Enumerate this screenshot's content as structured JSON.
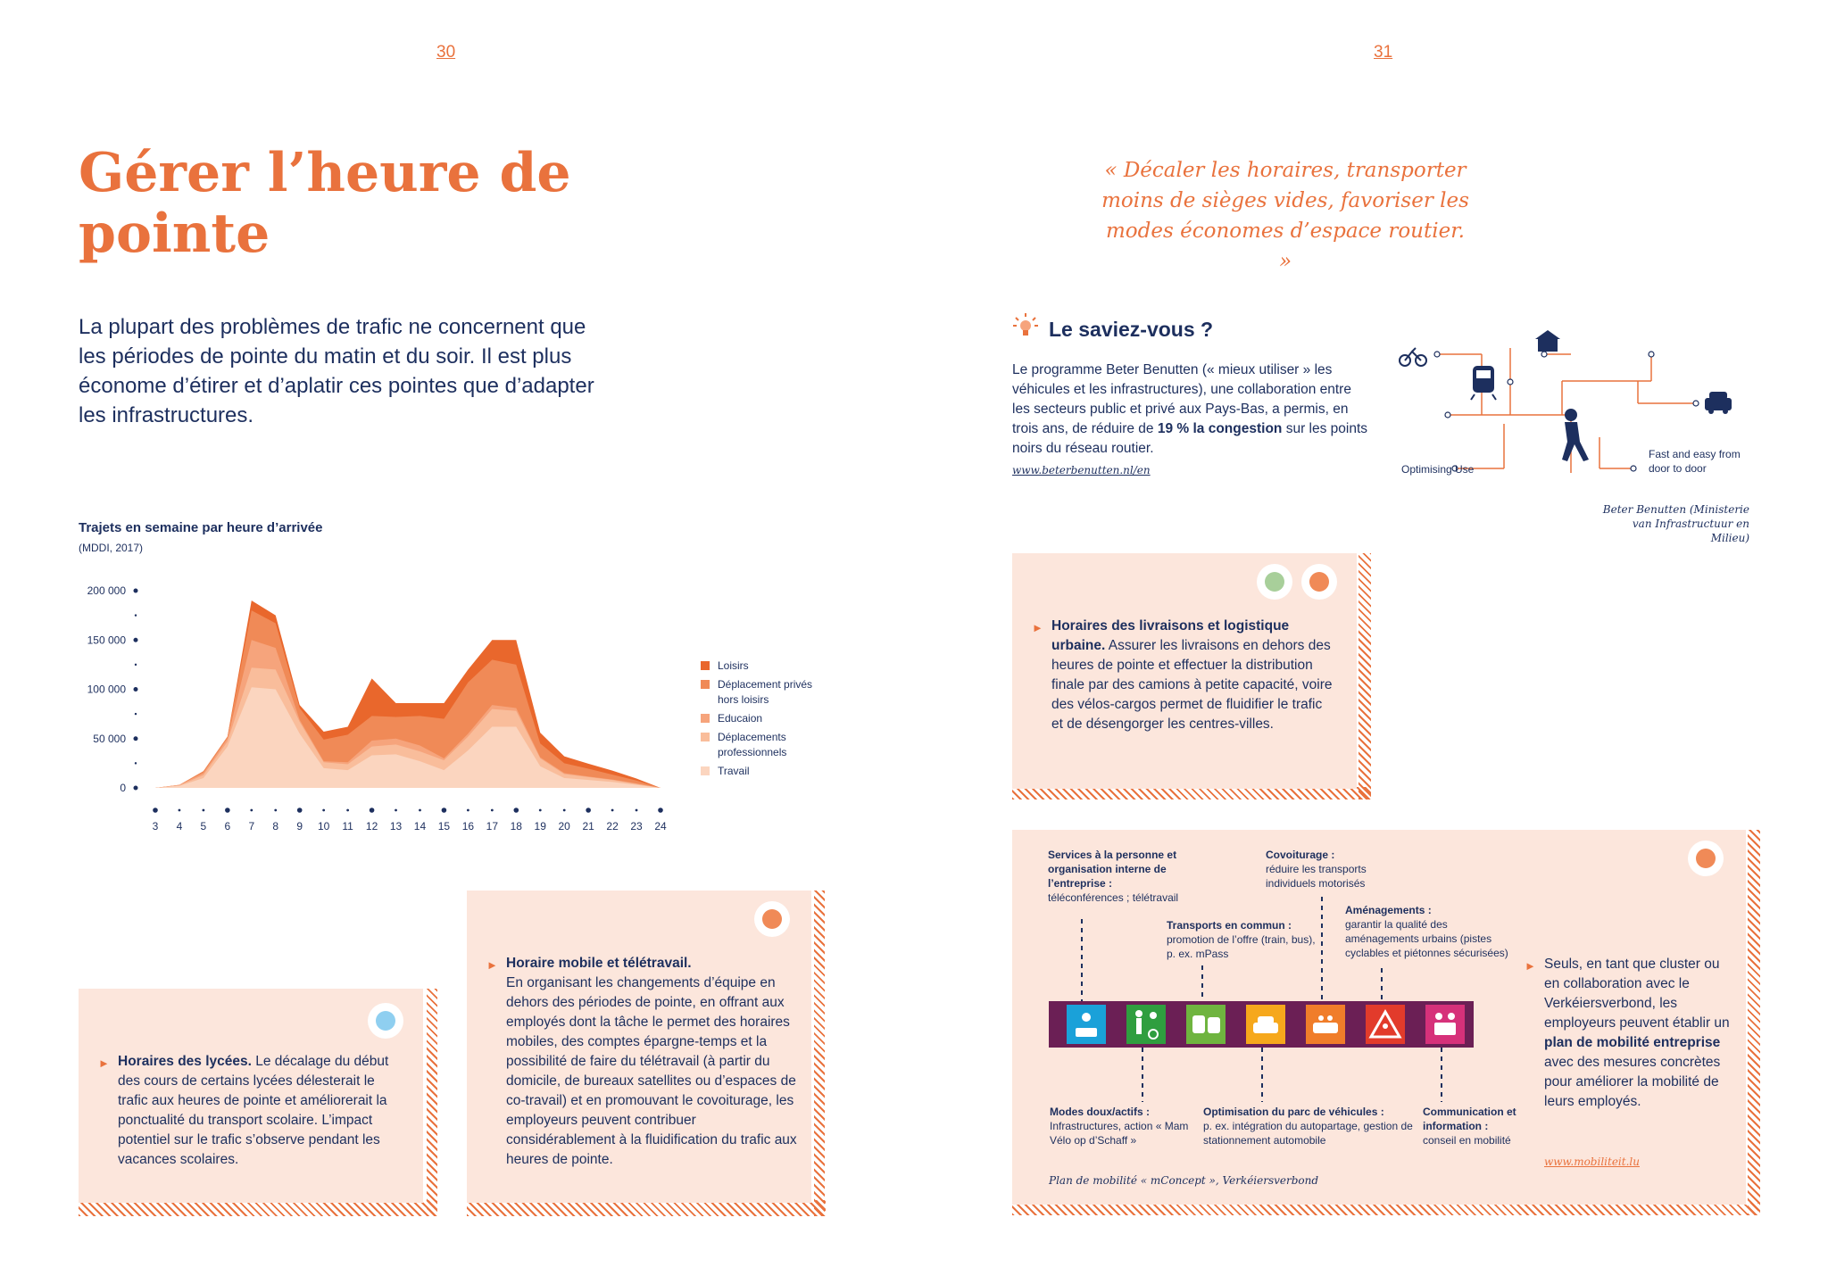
{
  "pages": {
    "left": "30",
    "right": "31"
  },
  "left": {
    "title": "Gérer l’heure de pointe",
    "intro": "La plupart des problèmes de trafic ne concernent que les périodes de pointe du matin et du soir. Il est plus économe d’étirer et d’aplatir ces pointes que d’adapter les infrastructures.",
    "box_lycees": {
      "heading": "Horaires des lycées.",
      "text": " Le décalage du début des cours de certains lycées délesterait le trafic aux heures de pointe et améliorerait la ponctualité du transport scolaire. L’impact potentiel sur le trafic s’observe pendant les vacances scolaires."
    },
    "box_teletravail": {
      "heading": "Horaire mobile et télétravail.",
      "text": "En organisant les changements d’équipe en dehors des périodes de pointe, en offrant aux employés dont la tâche le permet des horaires mobiles, des comptes épargne-temps et la possibilité de faire du télétravail (à partir du domicile, de bureaux satellites ou d’espaces de co-travail) et en promouvant le covoiturage, les employeurs peuvent contribuer considérablement à la fluidification du trafic aux heures de pointe."
    }
  },
  "right": {
    "quote": "« Décaler les horaires, transporter moins de sièges vides, favoriser les modes économes d’espace routier. »",
    "saviez": {
      "title": "Le saviez-vous ?",
      "text_a": "Le programme Beter Benutten (« mieux utiliser » les véhicules et les infrastructures), une collaboration entre les secteurs public et privé aux Pays-Bas, a permis, en trois ans, de réduire de ",
      "text_bold": "19 % la congestion",
      "text_b": " sur les points noirs du réseau routier.",
      "link": "www.beterbenutten.nl/en"
    },
    "diagram": {
      "label_optimising": "Optimising Use",
      "label_fast": "Fast and easy from door to door",
      "credit": "Beter Benutten (Ministerie van Infrastructuur en Milieu)"
    },
    "box_livraisons": {
      "heading": "Horaires des livraisons et logistique urbaine.",
      "text": " Assurer les livraisons en dehors des heures de pointe et effectuer la distribution finale par des camions à petite capacité, voire des vélos-cargos permet de fluidifier le trafic et de désengorger les centres-villes."
    },
    "mobility": {
      "services_title": "Services à la personne et organisation interne de l’entreprise :",
      "services_text": "téléconférences ; télétravail",
      "covoiturage_title": "Covoiturage :",
      "covoiturage_text": "réduire les transports individuels motorisés",
      "amenagements_title": "Aménagements :",
      "amenagements_text": "garantir la qualité des aménagements urbains (pistes cyclables et piétonnes sécurisées)",
      "transports_title": "Transports en commun :",
      "transports_text": "promotion de l’offre (train, bus), p. ex. mPass",
      "modes_title": "Modes doux/actifs :",
      "modes_text": "Infrastructures, action « Mam Vélo op d’Schaff »",
      "optim_title": "Optimisation du parc de véhicules :",
      "optim_text": "p. ex. intégration du autopartage, gestion de stationnement automobile",
      "comm_title": "Communication et information :",
      "comm_text": "conseil en mobilité",
      "caption": "Plan de mobilité « mConcept », Verkéiersverbond",
      "side_a": "Seuls, en tant que cluster ou en collaboration avec le Verkéiersverbond, les employeurs peuvent établir un ",
      "side_bold": "plan de mobilité entreprise",
      "side_b": " avec des mesures concrètes pour améliorer la mobilité de leurs employés.",
      "link": "www.mobiliteit.lu",
      "tile_icons": [
        "meeting-icon",
        "pedestrian-cyclist-icon",
        "train-bus-icon",
        "car-icon",
        "carpool-icon",
        "roadworks-icon",
        "communication-icon"
      ],
      "tile_colors": [
        "#1aa1d9",
        "#2f9e3f",
        "#6fb43f",
        "#f6a81c",
        "#f07d2a",
        "#e23b2b",
        "#d6317a"
      ],
      "strip_color": "#6b1f55"
    }
  },
  "chart_data": {
    "type": "area",
    "title": "Trajets en semaine par heure d’arrivée",
    "subtitle": "(MDDI, 2017)",
    "x": [
      "3",
      "4",
      "5",
      "6",
      "7",
      "8",
      "9",
      "10",
      "11",
      "12",
      "13",
      "14",
      "15",
      "16",
      "17",
      "18",
      "19",
      "20",
      "21",
      "22",
      "23",
      "24"
    ],
    "ylim": [
      0,
      200000
    ],
    "yticks": [
      "200 000",
      "150 000",
      "100 000",
      "50 000",
      "0"
    ],
    "stacked": true,
    "series": [
      {
        "name": "Travail",
        "color": "#fbd5bf",
        "values": [
          0,
          2000,
          10000,
          42000,
          102000,
          100000,
          55000,
          20000,
          18000,
          33000,
          34000,
          27000,
          18000,
          38000,
          62000,
          62000,
          22000,
          10000,
          8000,
          6000,
          3000,
          0
        ]
      },
      {
        "name": "Déplacements professionnels",
        "color": "#f9bd9b",
        "values": [
          0,
          500,
          3000,
          5000,
          20000,
          20000,
          12000,
          6000,
          6000,
          9000,
          10000,
          10000,
          10000,
          14000,
          18000,
          16000,
          8000,
          4000,
          3000,
          2000,
          1000,
          0
        ]
      },
      {
        "name": "Educaion",
        "color": "#f6a47c",
        "values": [
          0,
          500,
          2000,
          3000,
          28000,
          22000,
          2000,
          1000,
          2000,
          6000,
          6000,
          6000,
          2000,
          3000,
          4000,
          3000,
          1000,
          1000,
          500,
          500,
          500,
          0
        ]
      },
      {
        "name": "Déplacement privés hors loisirs",
        "color": "#f08a57",
        "values": [
          0,
          0,
          2000,
          2000,
          30000,
          25000,
          12000,
          22000,
          28000,
          25000,
          22000,
          30000,
          40000,
          52000,
          46000,
          44000,
          14000,
          10000,
          8000,
          5000,
          3000,
          0
        ]
      },
      {
        "name": "Loisirs",
        "color": "#e9672c",
        "values": [
          0,
          0,
          0,
          0,
          10000,
          8000,
          3000,
          8000,
          8000,
          38000,
          14000,
          13000,
          16000,
          13000,
          20000,
          25000,
          11000,
          7000,
          5000,
          4000,
          2000,
          0
        ]
      }
    ],
    "legend_position": "right"
  }
}
